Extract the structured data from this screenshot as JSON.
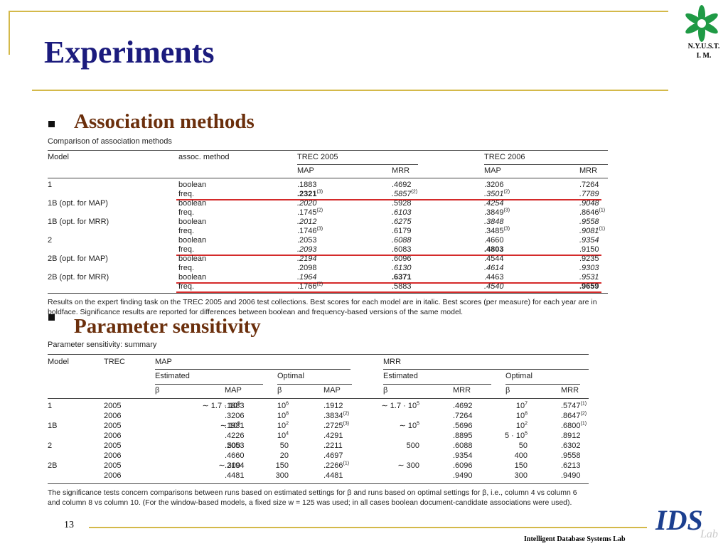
{
  "header": {
    "title": "Experiments",
    "logo_lines": [
      "N.Y.U.S.T.",
      "I. M."
    ]
  },
  "section1": {
    "bullet": "Association methods",
    "table": {
      "caption": "Comparison of association methods",
      "header": [
        "Model",
        "assoc. method"
      ],
      "groups": [
        "TREC 2005",
        "TREC 2006"
      ],
      "subheads": [
        "MAP",
        "MRR",
        "MAP",
        "MRR"
      ],
      "rows": [
        {
          "cells": [
            "1",
            "boolean",
            ".1883",
            ".4692",
            ".3206",
            ".7264"
          ]
        },
        {
          "cells": [
            null,
            "freq.",
            {
              "t": ".2321",
              "sup": "(3)",
              "b": true
            },
            {
              "t": ".5857",
              "sup": "(2)",
              "i": true
            },
            {
              "t": ".3501",
              "sup": "(2)",
              "i": true
            },
            {
              "t": ".7789",
              "i": true
            }
          ],
          "underline": true
        },
        {
          "cells": [
            "1B (opt. for MAP)",
            "boolean",
            {
              "t": ".2020",
              "i": true
            },
            ".5928",
            {
              "t": ".4254",
              "i": true
            },
            {
              "t": ".9048",
              "i": true
            }
          ]
        },
        {
          "cells": [
            null,
            "freq.",
            {
              "t": ".1745",
              "sup": "(2)"
            },
            {
              "t": ".6103",
              "i": true
            },
            {
              "t": ".3849",
              "sup": "(3)"
            },
            {
              "t": ".8646",
              "sup": "(1)"
            }
          ]
        },
        {
          "cells": [
            "1B (opt. for MRR)",
            "boolean",
            {
              "t": ".2012",
              "i": true
            },
            {
              "t": ".6275",
              "i": true
            },
            {
              "t": ".3848",
              "i": true
            },
            {
              "t": ".9558",
              "i": true
            }
          ]
        },
        {
          "cells": [
            null,
            "freq.",
            {
              "t": ".1746",
              "sup": "(3)"
            },
            ".6179",
            {
              "t": ".3485",
              "sup": "(3)"
            },
            {
              "t": ".9081",
              "sup": "(1)",
              "i": true
            }
          ]
        },
        {
          "cells": [
            "2",
            "boolean",
            ".2053",
            {
              "t": ".6088",
              "i": true
            },
            ".4660",
            {
              "t": ".9354",
              "i": true
            }
          ]
        },
        {
          "cells": [
            null,
            "freq.",
            {
              "t": ".2093",
              "i": true
            },
            ".6083",
            {
              "t": ".4803",
              "b": true
            },
            ".9150"
          ],
          "underline": true
        },
        {
          "cells": [
            "2B (opt. for MAP)",
            "boolean",
            {
              "t": ".2194",
              "i": true
            },
            ".6096",
            ".4544",
            ".9235"
          ]
        },
        {
          "cells": [
            null,
            "freq.",
            ".2098",
            {
              "t": ".6130",
              "i": true
            },
            {
              "t": ".4614",
              "i": true
            },
            {
              "t": ".9303",
              "i": true
            }
          ]
        },
        {
          "cells": [
            "2B (opt. for MRR)",
            "boolean",
            {
              "t": ".1964",
              "i": true
            },
            {
              "t": ".6371",
              "b": true
            },
            ".4463",
            {
              "t": ".9531",
              "i": true
            }
          ],
          "underline": true
        },
        {
          "cells": [
            null,
            "freq.",
            {
              "t": ".1766",
              "sup": "(2)"
            },
            ".5883",
            {
              "t": ".4540",
              "i": true
            },
            {
              "t": ".9659",
              "b": true
            }
          ],
          "underline": true
        }
      ],
      "note": "Results on the expert finding task on the TREC 2005 and 2006 test collections. Best scores for each model are in italic. Best scores (per measure) for each year are in boldface. Significance results are reported for differences between boolean and frequency-based versions of the same model."
    }
  },
  "section2": {
    "bullet": "Parameter sensitivity",
    "table": {
      "caption": "Parameter sensitivity: summary",
      "header": [
        "Model",
        "TREC"
      ],
      "groups": [
        "MAP",
        "MRR"
      ],
      "subgroups": [
        "Estimated",
        "Optimal",
        "Estimated",
        "Optimal"
      ],
      "subheads": [
        "β",
        "MAP",
        "β",
        "MAP",
        "β",
        "MRR",
        "β",
        "MRR"
      ],
      "rows": [
        [
          "1",
          "2005",
          {
            "t": "∼ 1.7 · 10",
            "sup": "5"
          },
          ".1883",
          {
            "t": "10",
            "sup": "6"
          },
          ".1912",
          {
            "t": "∼ 1.7 · 10",
            "sup": "5"
          },
          ".4692",
          {
            "t": "10",
            "sup": "7"
          },
          {
            "t": ".5747",
            "sup": "(1)"
          }
        ],
        [
          null,
          "2006",
          null,
          ".3206",
          {
            "t": "10",
            "sup": "8"
          },
          {
            "t": ".3834",
            "sup": "(2)"
          },
          null,
          ".7264",
          {
            "t": "10",
            "sup": "8"
          },
          {
            "t": ".8647",
            "sup": "(2)"
          }
        ],
        [
          "1B",
          "2005",
          {
            "t": "∼ 10",
            "sup": "5"
          },
          ".1931",
          {
            "t": "10",
            "sup": "2"
          },
          {
            "t": ".2725",
            "sup": "(3)"
          },
          {
            "t": "∼ 10",
            "sup": "5"
          },
          ".5696",
          {
            "t": "10",
            "sup": "2"
          },
          {
            "t": ".6800",
            "sup": "(1)"
          }
        ],
        [
          null,
          "2006",
          null,
          ".4226",
          {
            "t": "10",
            "sup": "4"
          },
          ".4291",
          null,
          ".8895",
          {
            "t": "5 · 10",
            "sup": "5"
          },
          ".8912"
        ],
        [
          "2",
          "2005",
          "500",
          ".2053",
          "50",
          ".2211",
          "500",
          ".6088",
          "50",
          ".6302"
        ],
        [
          null,
          "2006",
          null,
          ".4660",
          "20",
          ".4697",
          null,
          ".9354",
          "400",
          ".9558"
        ],
        [
          "2B",
          "2005",
          "∼ 300",
          ".2194",
          "150",
          {
            "t": ".2266",
            "sup": "(1)"
          },
          "∼ 300",
          ".6096",
          "150",
          ".6213"
        ],
        [
          null,
          "2006",
          null,
          ".4481",
          "300",
          ".4481",
          null,
          ".9490",
          "300",
          ".9490"
        ]
      ],
      "note": "The significance tests concern comparisons between runs based on estimated settings for β and runs based on optimal settings for β, i.e., column 4 vs column 6 and column 8 vs column 10. (For the window-based models, a fixed size w = 125 was used; in all cases boolean document-candidate associations were used)."
    }
  },
  "footer": {
    "page": "13",
    "lab": "Intelligent Database Systems Lab",
    "logo": "IDS",
    "logo_sub": "Lab"
  }
}
